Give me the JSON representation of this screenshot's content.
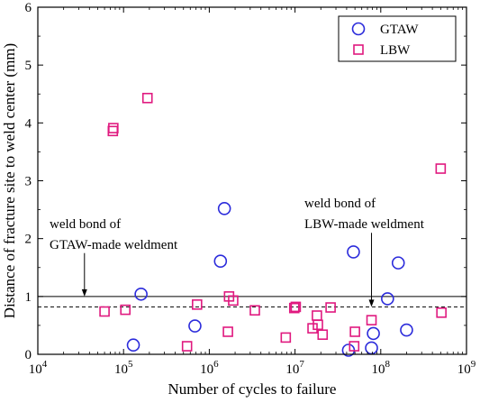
{
  "chart_data": {
    "type": "scatter",
    "xlabel": "Number of cycles to failure",
    "ylabel": "Distance of fracture site to weld center (mm)",
    "xscale": "log",
    "xlim": [
      10000,
      1000000000
    ],
    "ylim": [
      0,
      6
    ],
    "x_ticks": [
      {
        "base": "10",
        "exp": "4"
      },
      {
        "base": "10",
        "exp": "5"
      },
      {
        "base": "10",
        "exp": "6"
      },
      {
        "base": "10",
        "exp": "7"
      },
      {
        "base": "10",
        "exp": "8"
      },
      {
        "base": "10",
        "exp": "9"
      }
    ],
    "y_ticks": [
      "0",
      "1",
      "2",
      "3",
      "4",
      "5",
      "6"
    ],
    "legend_position": "top-right",
    "grid": false,
    "series": [
      {
        "name": "GTAW",
        "marker": "circle",
        "color": "#2b2bdb",
        "points": [
          [
            130000,
            0.16
          ],
          [
            160000,
            1.04
          ],
          [
            680000,
            0.49
          ],
          [
            1350000,
            1.61
          ],
          [
            1500000,
            2.52
          ],
          [
            42000000,
            0.07
          ],
          [
            48000000,
            1.77
          ],
          [
            78000000,
            0.11
          ],
          [
            82000000,
            0.36
          ],
          [
            120000000,
            0.96
          ],
          [
            160000000,
            1.58
          ],
          [
            200000000,
            0.42
          ]
        ]
      },
      {
        "name": "LBW",
        "marker": "square",
        "color": "#e0197f",
        "points": [
          [
            60000,
            0.74
          ],
          [
            75000,
            3.86
          ],
          [
            76000,
            3.91
          ],
          [
            105000,
            0.77
          ],
          [
            190000,
            4.43
          ],
          [
            550000,
            0.14
          ],
          [
            720000,
            0.86
          ],
          [
            1650000,
            0.39
          ],
          [
            1700000,
            1.0
          ],
          [
            1900000,
            0.93
          ],
          [
            3400000,
            0.76
          ],
          [
            7800000,
            0.29
          ],
          [
            9800000,
            0.8
          ],
          [
            10200000,
            0.82
          ],
          [
            16000000,
            0.45
          ],
          [
            18000000,
            0.67
          ],
          [
            18500000,
            0.51
          ],
          [
            21000000,
            0.34
          ],
          [
            26000000,
            0.81
          ],
          [
            49000000,
            0.14
          ],
          [
            50000000,
            0.39
          ],
          [
            78000000,
            0.59
          ],
          [
            500000000,
            3.21
          ],
          [
            510000000,
            0.72
          ]
        ]
      }
    ],
    "reference_lines": [
      {
        "y": 1.0,
        "style": "solid"
      },
      {
        "y": 0.82,
        "style": "dashed"
      }
    ],
    "annotations": [
      {
        "lines": [
          "weld bond of",
          "GTAW-made weldment"
        ],
        "arrow_x": 35000,
        "arrow_from_y": 1.75,
        "arrow_to_y": 1.0
      },
      {
        "lines": [
          "weld bond of",
          "LBW-made weldment"
        ],
        "arrow_x": 78000000,
        "arrow_from_y": 2.1,
        "arrow_to_y": 0.82
      }
    ]
  }
}
